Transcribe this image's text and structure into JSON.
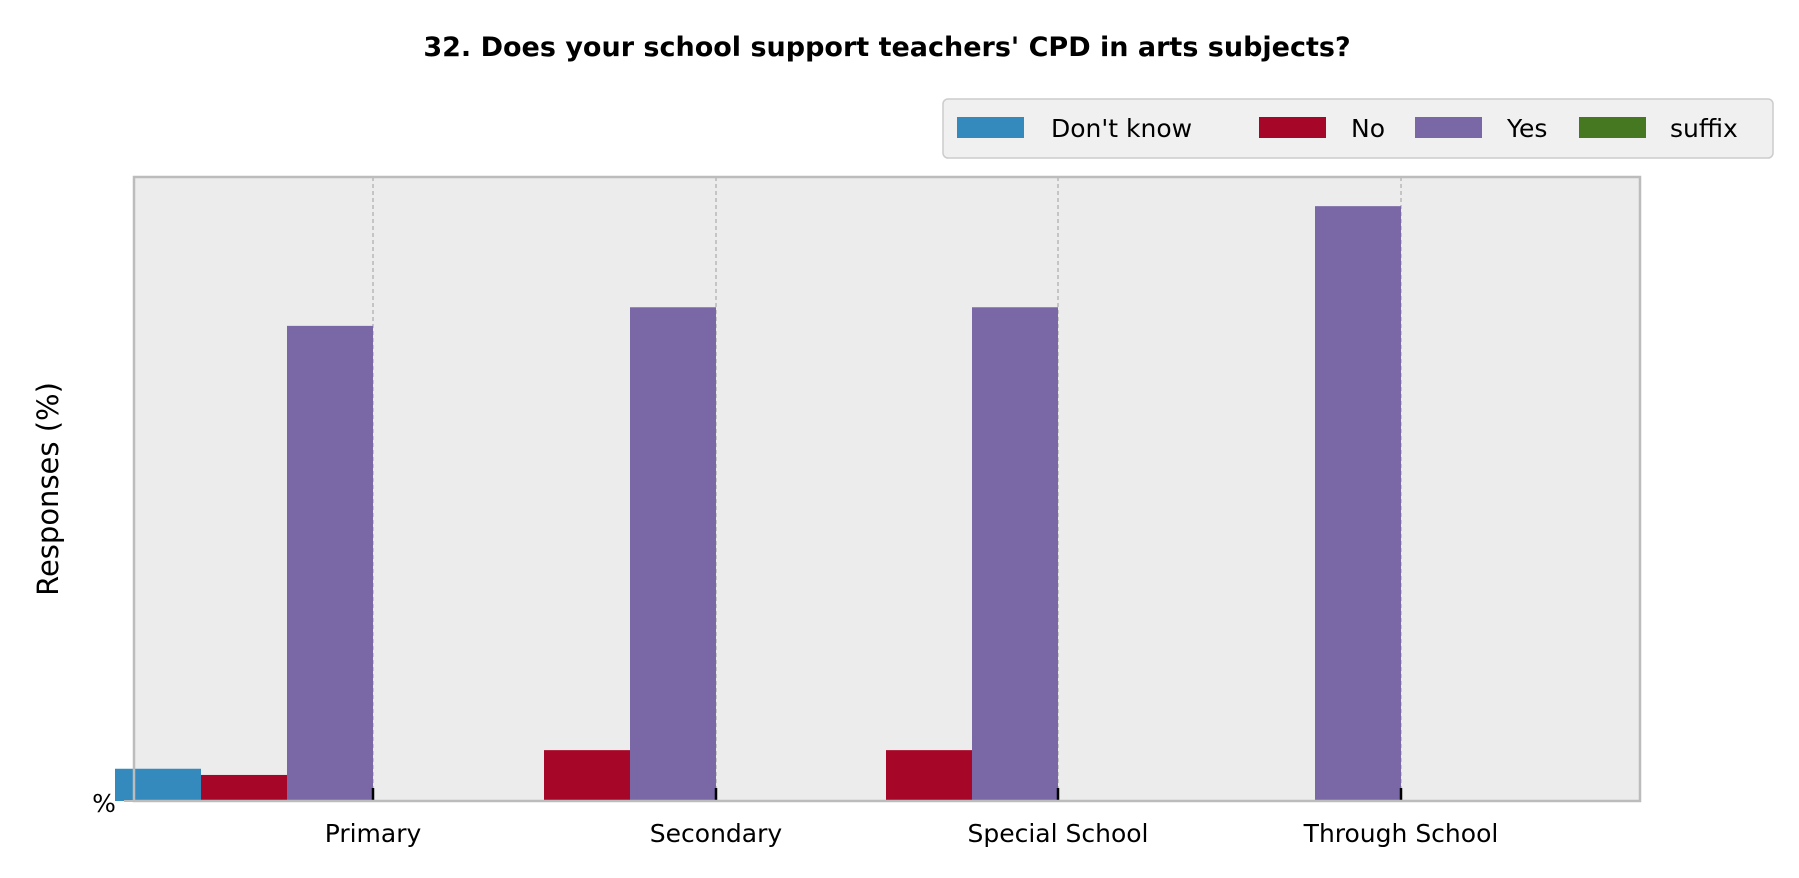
{
  "chart_data": {
    "type": "bar",
    "title": "32. Does your school support teachers' CPD in arts subjects?",
    "xlabel": "",
    "ylabel": "Responses (%)",
    "y_tick_label": "%",
    "categories": [
      "Primary",
      "Secondary",
      "Special School",
      "Through School"
    ],
    "series": [
      {
        "name": "Don't know",
        "color": "#348abd",
        "values": [
          5.2,
          0,
          0,
          0
        ]
      },
      {
        "name": "No",
        "color": "#a60628",
        "values": [
          4.2,
          8.2,
          8.2,
          0
        ]
      },
      {
        "name": "Yes",
        "color": "#7a68a6",
        "values": [
          76.6,
          79.6,
          79.6,
          95.9
        ]
      },
      {
        "name": "suffix",
        "color": "#467821",
        "values": [
          0,
          0,
          0,
          0
        ]
      }
    ],
    "ylim": [
      0,
      100.6
    ],
    "grid": "vertical dashed at category centers",
    "legend_position": "top-right, outside plot",
    "colors": {
      "plot_background": "#ececec",
      "plot_border": "#bcbcbc",
      "grid": "#b0b0b0",
      "legend_background": "#f0f0f0",
      "legend_border": "#cccccc"
    }
  }
}
